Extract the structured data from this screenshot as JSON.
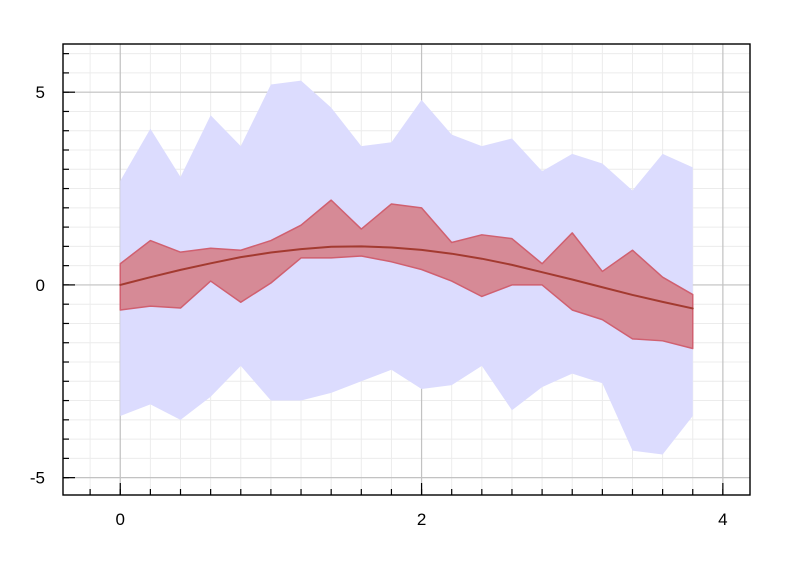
{
  "chart_data": {
    "type": "area",
    "title": "",
    "xlabel": "",
    "ylabel": "",
    "xlim": [
      -0.38,
      4.18
    ],
    "ylim": [
      -5.45,
      6.25
    ],
    "grid": true,
    "x_ticks": [
      0,
      2,
      4
    ],
    "y_ticks": [
      -5,
      0,
      5
    ],
    "x_tick_labels": [
      "0",
      "2",
      "4"
    ],
    "y_tick_labels": [
      "-5",
      "0",
      "5"
    ],
    "x": [
      0,
      0.2,
      0.4,
      0.6,
      0.8,
      1.0,
      1.2,
      1.4,
      1.6,
      1.8,
      2.0,
      2.2,
      2.4,
      2.6,
      2.8,
      3.0,
      3.2,
      3.4,
      3.6,
      3.8
    ],
    "series": [
      {
        "kind": "band",
        "color": "#dcdcfe",
        "upper": [
          2.7,
          4.05,
          2.8,
          4.4,
          3.6,
          5.2,
          5.3,
          4.6,
          3.6,
          3.7,
          4.8,
          3.9,
          3.6,
          3.8,
          2.95,
          3.4,
          3.15,
          2.45,
          3.4,
          3.05
        ],
        "lower": [
          -3.4,
          -3.1,
          -3.5,
          -2.9,
          -2.1,
          -3.0,
          -3.0,
          -2.8,
          -2.5,
          -2.2,
          -2.7,
          -2.6,
          -2.1,
          -3.25,
          -2.65,
          -2.3,
          -2.55,
          -4.3,
          -4.4,
          -3.4
        ]
      },
      {
        "kind": "band",
        "color": "#d68a96",
        "edge_color": "#d06070",
        "upper": [
          0.55,
          1.15,
          0.85,
          0.95,
          0.9,
          1.15,
          1.55,
          2.2,
          1.45,
          2.1,
          2.0,
          1.1,
          1.3,
          1.2,
          0.55,
          1.35,
          0.35,
          0.9,
          0.2,
          -0.25
        ],
        "lower": [
          -0.65,
          -0.55,
          -0.6,
          0.1,
          -0.45,
          0.05,
          0.7,
          0.7,
          0.75,
          0.6,
          0.4,
          0.1,
          -0.3,
          0.0,
          0.0,
          -0.65,
          -0.9,
          -1.4,
          -1.45,
          -1.65
        ]
      },
      {
        "kind": "line",
        "color": "#a33a30",
        "y": [
          0.0,
          0.2,
          0.39,
          0.56,
          0.72,
          0.84,
          0.93,
          0.99,
          1.0,
          0.97,
          0.91,
          0.81,
          0.68,
          0.52,
          0.33,
          0.14,
          -0.06,
          -0.26,
          -0.44,
          -0.61
        ]
      }
    ]
  }
}
